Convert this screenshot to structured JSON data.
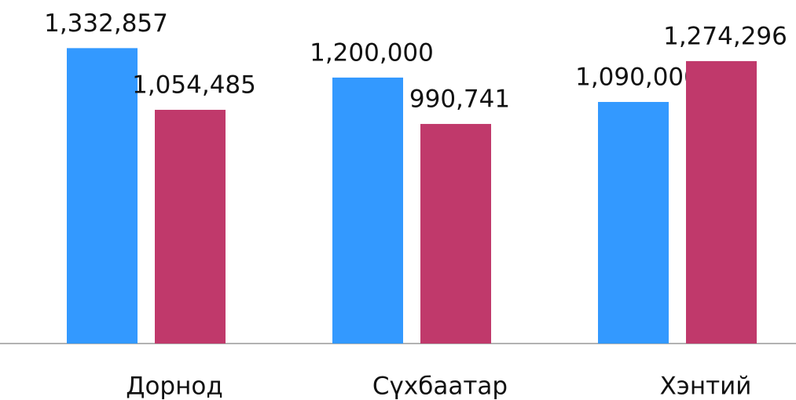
{
  "chart_data": {
    "type": "bar",
    "categories": [
      "Дорнод",
      "Сүхбаатар",
      "Хэнтий"
    ],
    "series": [
      {
        "color": "#3399ff",
        "values": [
          1332857,
          1200000,
          1090000
        ],
        "value_labels": [
          "1,332,857",
          "1,200,000",
          "1,090,000"
        ]
      },
      {
        "color": "#c0396b",
        "values": [
          1054485,
          990741,
          1274296
        ],
        "value_labels": [
          "1,054,485",
          "990,741",
          "1,274,296"
        ]
      }
    ],
    "ylim": [
      0,
      1550000
    ]
  }
}
